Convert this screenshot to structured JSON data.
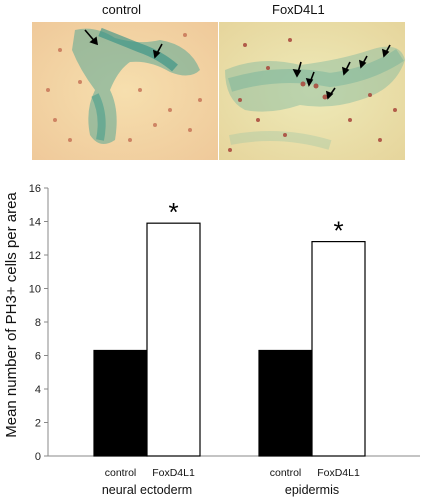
{
  "panels": [
    {
      "label": "control",
      "arrow_count": 2
    },
    {
      "label": "FoxD4L1",
      "arrow_count": 6
    }
  ],
  "colors": {
    "control": "#000000",
    "foxd4l1": "#ffffff",
    "stain": "#3a9a8a",
    "background": "#f4d6a8"
  },
  "chart_data": {
    "type": "bar",
    "ylabel": "Mean number of PH3+ cells per area",
    "ylim": [
      0,
      16
    ],
    "yticks": [
      0,
      2,
      4,
      6,
      8,
      10,
      12,
      14,
      16
    ],
    "groups": [
      {
        "name": "neural ectoderm",
        "bars": [
          {
            "label": "control",
            "value": 6.3
          },
          {
            "label": "FoxD4L1",
            "value": 13.9,
            "annotation": "*"
          }
        ]
      },
      {
        "name": "epidermis",
        "bars": [
          {
            "label": "control",
            "value": 6.3
          },
          {
            "label": "FoxD4L1",
            "value": 12.8,
            "annotation": "*"
          }
        ]
      }
    ]
  }
}
